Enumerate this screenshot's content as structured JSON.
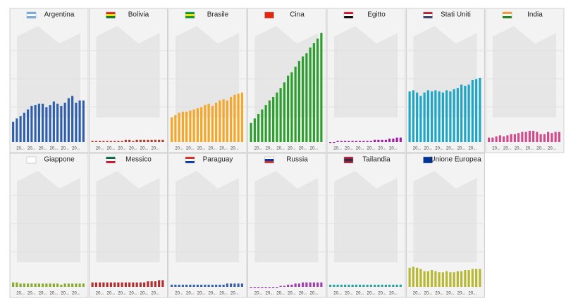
{
  "chart_data": [
    {
      "type": "bar",
      "title": "Argentina",
      "color": "#2e5fad",
      "ylim": [
        0,
        100
      ],
      "categories": [
        null,
        null,
        "20...",
        null,
        null,
        "20...",
        null,
        null,
        "20...",
        null,
        null,
        "20...",
        null,
        null,
        "20...",
        null,
        null,
        "20...",
        null,
        null
      ],
      "values": [
        18,
        21,
        23,
        26,
        29,
        32,
        33,
        34,
        34,
        31,
        33,
        36,
        34,
        32,
        35,
        39,
        41,
        35,
        37,
        37
      ]
    },
    {
      "type": "bar",
      "title": "Bolivia",
      "color": "#b03a2e",
      "ylim": [
        0,
        100
      ],
      "categories": [
        null,
        null,
        "20...",
        null,
        null,
        "20...",
        null,
        null,
        "20...",
        null,
        null,
        "20...",
        null,
        null,
        "20...",
        null,
        null,
        "20...",
        null,
        null
      ],
      "values": [
        1,
        1,
        1,
        1,
        1,
        1,
        1,
        1,
        1,
        2,
        2,
        1,
        2,
        2,
        2,
        2,
        2,
        2,
        2,
        2
      ]
    },
    {
      "type": "bar",
      "title": "Brasile",
      "color": "#f5a623",
      "ylim": [
        0,
        100
      ],
      "categories": [
        null,
        null,
        "20...",
        null,
        null,
        "20...",
        null,
        null,
        "20...",
        null,
        null,
        "20...",
        null,
        null,
        "20...",
        null,
        null,
        "20...",
        null,
        null
      ],
      "values": [
        22,
        24,
        26,
        27,
        27,
        28,
        29,
        30,
        31,
        33,
        34,
        32,
        35,
        37,
        38,
        37,
        40,
        42,
        43,
        44
      ]
    },
    {
      "type": "bar",
      "title": "Cina",
      "color": "#2a9d2a",
      "ylim": [
        0,
        100
      ],
      "categories": [
        null,
        null,
        "20...",
        null,
        null,
        "20...",
        null,
        null,
        "20...",
        null,
        null,
        "20...",
        null,
        null,
        "20...",
        null,
        null,
        "20...",
        null,
        null
      ],
      "values": [
        17,
        21,
        25,
        29,
        33,
        37,
        40,
        44,
        48,
        53,
        59,
        62,
        67,
        72,
        76,
        79,
        84,
        88,
        92,
        97
      ]
    },
    {
      "type": "bar",
      "title": "Egitto",
      "color": "#9b1fa0",
      "ylim": [
        0,
        100
      ],
      "categories": [
        null,
        null,
        "20...",
        null,
        null,
        "20...",
        null,
        null,
        "20...",
        null,
        null,
        "20...",
        null,
        null,
        "20...",
        null,
        null,
        "20...",
        null,
        null
      ],
      "values": [
        0,
        0,
        1,
        1,
        1,
        1,
        1,
        1,
        1,
        1,
        1,
        1,
        2,
        2,
        2,
        2,
        3,
        3,
        4,
        4
      ]
    },
    {
      "type": "bar",
      "title": "Stati Uniti",
      "color": "#1aa6c4",
      "ylim": [
        0,
        100
      ],
      "categories": [
        null,
        null,
        "20...",
        null,
        null,
        "20...",
        null,
        null,
        "20...",
        null,
        null,
        "20...",
        null,
        null,
        "20...",
        null,
        null,
        "20...",
        null,
        null
      ],
      "values": [
        45,
        46,
        44,
        41,
        44,
        46,
        45,
        46,
        45,
        44,
        46,
        45,
        47,
        48,
        51,
        50,
        51,
        55,
        56,
        57
      ]
    },
    {
      "type": "bar",
      "title": "India",
      "color": "#d14a8b",
      "ylim": [
        0,
        100
      ],
      "categories": [
        null,
        null,
        "20...",
        null,
        null,
        "20...",
        null,
        null,
        "20...",
        null,
        null,
        "20...",
        null,
        null,
        "20...",
        null,
        null,
        "20...",
        null,
        null
      ],
      "values": [
        4,
        4,
        5,
        6,
        5,
        6,
        7,
        7,
        8,
        9,
        9,
        10,
        10,
        9,
        7,
        7,
        9,
        8,
        9,
        9
      ]
    },
    {
      "type": "bar",
      "title": "Giappone",
      "color": "#8bab2a",
      "ylim": [
        0,
        100
      ],
      "categories": [
        null,
        null,
        "20...",
        null,
        null,
        "20...",
        null,
        null,
        "20...",
        null,
        null,
        "20...",
        null,
        null,
        "20...",
        null,
        null,
        "20...",
        null,
        null
      ],
      "values": [
        4,
        4,
        3,
        3,
        3,
        3,
        3,
        3,
        3,
        3,
        3,
        3,
        3,
        2,
        3,
        3,
        3,
        3,
        3,
        3
      ]
    },
    {
      "type": "bar",
      "title": "Messico",
      "color": "#b03030",
      "ylim": [
        0,
        100
      ],
      "categories": [
        null,
        null,
        "20...",
        null,
        null,
        "20...",
        null,
        null,
        "20...",
        null,
        null,
        "20...",
        null,
        null,
        "20...",
        null,
        null,
        "20...",
        null,
        null
      ],
      "values": [
        4,
        4,
        4,
        4,
        4,
        4,
        4,
        4,
        4,
        4,
        4,
        4,
        4,
        4,
        4,
        5,
        5,
        5,
        6,
        6
      ]
    },
    {
      "type": "bar",
      "title": "Paraguay",
      "color": "#3a5fa8",
      "ylim": [
        0,
        100
      ],
      "categories": [
        null,
        null,
        "20...",
        null,
        null,
        "20...",
        null,
        null,
        "20...",
        null,
        null,
        "20...",
        null,
        null,
        "20...",
        null,
        null,
        "20...",
        null,
        null
      ],
      "values": [
        2,
        2,
        2,
        2,
        2,
        2,
        2,
        2,
        2,
        2,
        2,
        2,
        2,
        2,
        2,
        3,
        3,
        3,
        3,
        3
      ]
    },
    {
      "type": "bar",
      "title": "Russia",
      "color": "#a040b0",
      "ylim": [
        0,
        100
      ],
      "categories": [
        null,
        null,
        "20...",
        null,
        null,
        "20...",
        null,
        null,
        "20...",
        null,
        null,
        "20...",
        null,
        null,
        "20...",
        null,
        null,
        "20...",
        null,
        null
      ],
      "values": [
        0,
        0,
        0,
        0,
        0,
        0,
        0,
        0,
        1,
        1,
        2,
        2,
        3,
        3,
        4,
        4,
        4,
        4,
        4,
        4
      ]
    },
    {
      "type": "bar",
      "title": "Tailandia",
      "color": "#2aa0a0",
      "ylim": [
        0,
        100
      ],
      "categories": [
        null,
        null,
        "20...",
        null,
        null,
        "20...",
        null,
        null,
        "20...",
        null,
        null,
        "20...",
        null,
        null,
        "20...",
        null,
        null,
        "20...",
        null,
        null
      ],
      "values": [
        2,
        2,
        2,
        2,
        2,
        2,
        2,
        2,
        2,
        2,
        2,
        2,
        2,
        2,
        2,
        2,
        2,
        2,
        2,
        2
      ]
    },
    {
      "type": "bar",
      "title": "Unione Europea",
      "color": "#b8b830",
      "ylim": [
        0,
        100
      ],
      "categories": [
        null,
        null,
        "20...",
        null,
        null,
        "20...",
        null,
        null,
        "20...",
        null,
        null,
        "20...",
        null,
        null,
        "20...",
        null,
        null,
        "20...",
        null,
        null
      ],
      "values": [
        17,
        18,
        17,
        16,
        14,
        14,
        15,
        14,
        13,
        13,
        14,
        13,
        13,
        14,
        14,
        15,
        15,
        16,
        16,
        16
      ]
    }
  ]
}
